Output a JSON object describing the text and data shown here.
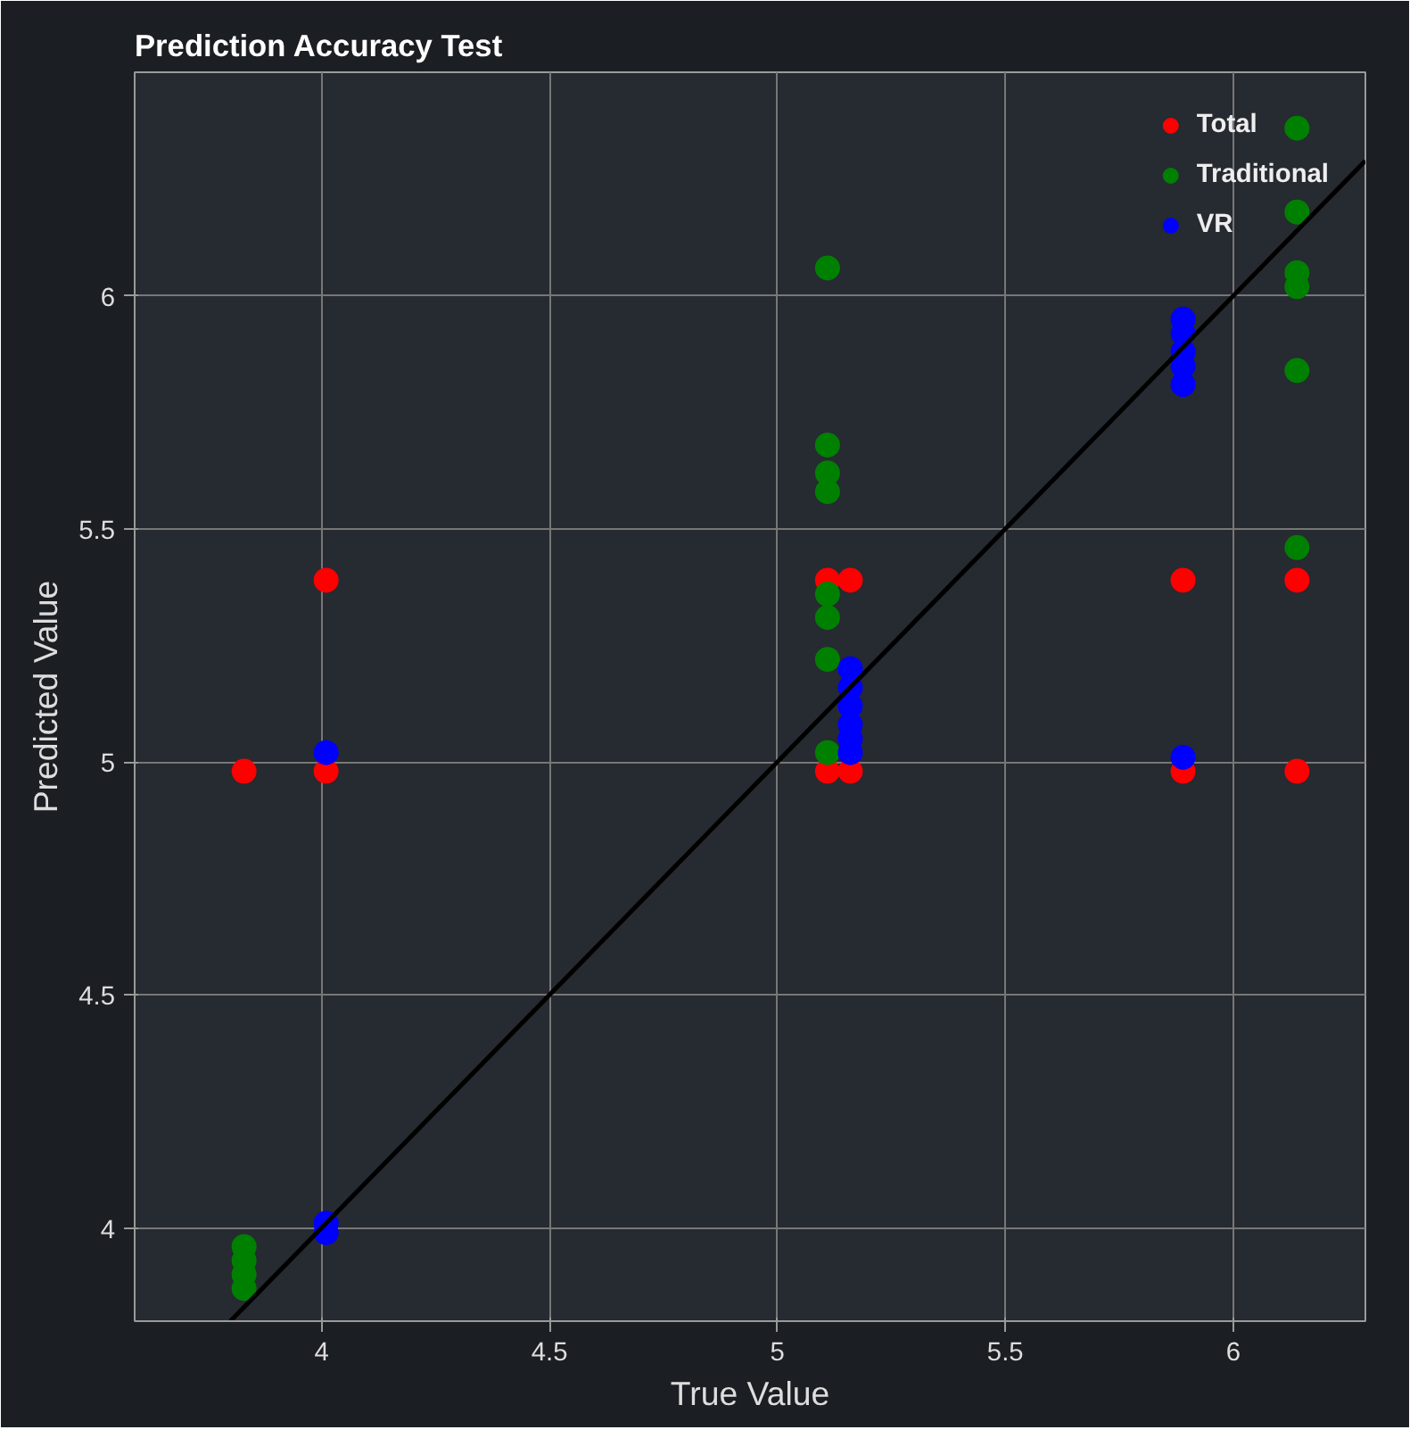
{
  "chart_data": {
    "type": "scatter",
    "title": "Prediction Accuracy Test",
    "xlabel": "True Value",
    "ylabel": "Predicted Value",
    "xlim": [
      3.59,
      6.29
    ],
    "ylim": [
      3.8,
      6.48
    ],
    "xticks": [
      4,
      4.5,
      5,
      5.5,
      6
    ],
    "yticks": [
      4,
      4.5,
      5,
      5.5,
      6
    ],
    "grid": true,
    "legend": "top right",
    "series": [
      {
        "name": "Total",
        "color": "#ff0000",
        "marker": "circle",
        "x": [
          3.83,
          4.01,
          4.01,
          5.11,
          5.16,
          5.11,
          5.16,
          5.89,
          5.89,
          6.14,
          6.14
        ],
        "values": [
          4.98,
          5.39,
          4.98,
          5.39,
          5.39,
          4.98,
          4.98,
          5.39,
          4.98,
          5.39,
          4.98
        ]
      },
      {
        "name": "Traditional",
        "color": "#008000",
        "marker": "circle",
        "x": [
          3.83,
          3.83,
          3.83,
          3.83,
          5.11,
          5.11,
          5.11,
          5.11,
          5.11,
          5.11,
          5.11,
          5.11,
          6.14,
          6.14,
          6.14,
          6.14,
          6.14,
          6.14
        ],
        "values": [
          3.96,
          3.93,
          3.9,
          3.87,
          6.06,
          5.68,
          5.62,
          5.58,
          5.36,
          5.31,
          5.22,
          5.02,
          6.36,
          6.18,
          6.05,
          6.02,
          5.84,
          5.46
        ]
      },
      {
        "name": "VR",
        "color": "#0000ff",
        "marker": "circle",
        "x": [
          4.01,
          4.01,
          4.01,
          5.16,
          5.16,
          5.16,
          5.16,
          5.16,
          5.16,
          5.89,
          5.89,
          5.89,
          5.89,
          5.89,
          5.89
        ],
        "values": [
          5.02,
          4.01,
          3.99,
          5.2,
          5.16,
          5.12,
          5.08,
          5.05,
          5.02,
          5.95,
          5.92,
          5.88,
          5.85,
          5.81,
          5.01
        ]
      },
      {
        "type": "line",
        "color": "#000000",
        "x": [
          3.8,
          6.29
        ],
        "values": [
          3.8,
          6.29
        ]
      }
    ]
  }
}
